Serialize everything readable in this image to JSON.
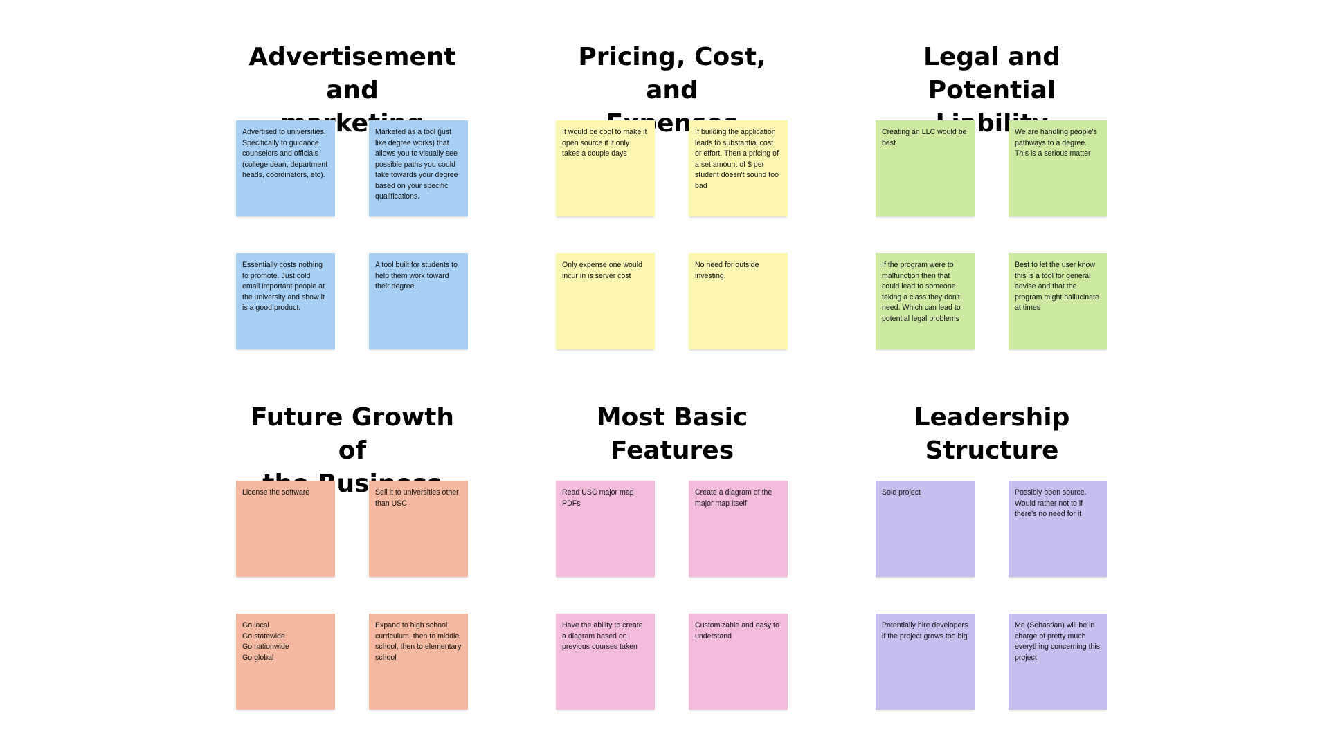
{
  "colors": {
    "blue": "#a8d0f4",
    "yellow": "#fcf8b4",
    "green": "#cde9a2",
    "orange": "#f5b8a0",
    "pink": "#f3bcda",
    "purple": "#c6c0ef"
  },
  "groups": [
    {
      "title": "Advertisement and\nmarketing",
      "color": "#a8d0f4",
      "notes": [
        "Advertised to universities. Specifically to guidance counselors and officials (college dean, department heads, coordinators, etc).",
        "Marketed as a tool (just like degree works) that allows you to visually see possible paths you could take towards your degree based on your specific qualifications.",
        "Essentially costs nothing to promote. Just cold email important people at the university and show it is a good product.",
        "A tool built for students to help them work toward their degree."
      ]
    },
    {
      "title": "Pricing, Cost, and\nExpenses",
      "color": "#fcf8b4",
      "notes": [
        "It would be cool to make it open source if it only takes a couple days",
        "If building the application leads to substantial cost or effort. Then a pricing of a set amount of $ per student doesn't sound too bad",
        "Only expense one would incur in is server cost",
        "No need for outside investing."
      ]
    },
    {
      "title": "Legal and Potential\nLiability",
      "color": "#cde9a2",
      "notes": [
        "Creating an LLC would be best",
        "We are handling people's pathways to a degree. This is a serious matter",
        "If the program were to malfunction then that could lead to someone taking a class they don't need. Which can lead to potential legal problems",
        "Best to let the user know this is a tool for general advise and that the program might hallucinate at times"
      ]
    },
    {
      "title": "Future Growth of\nthe Business",
      "color": "#f5b8a0",
      "notes": [
        "License the software",
        "Sell it to universities other than USC",
        "Go local\nGo statewide\nGo nationwide\nGo global",
        "Expand to high school curriculum, then to middle school, then to elementary school"
      ]
    },
    {
      "title": "Most Basic\nFeatures",
      "color": "#f3bcda",
      "notes": [
        "Read USC major map PDFs",
        "Create a diagram of the major map itself",
        "Have the ability to create a diagram based on previous courses taken",
        "Customizable and easy to understand"
      ]
    },
    {
      "title": "Leadership\nStructure",
      "color": "#c6c0ef",
      "notes": [
        "Solo project",
        "Possibly open source. Would rather not to if there's no need for it",
        "Potentially hire developers if the project grows too big",
        "Me (Sebastian) will be in charge of pretty much everything concerning this project"
      ]
    }
  ]
}
